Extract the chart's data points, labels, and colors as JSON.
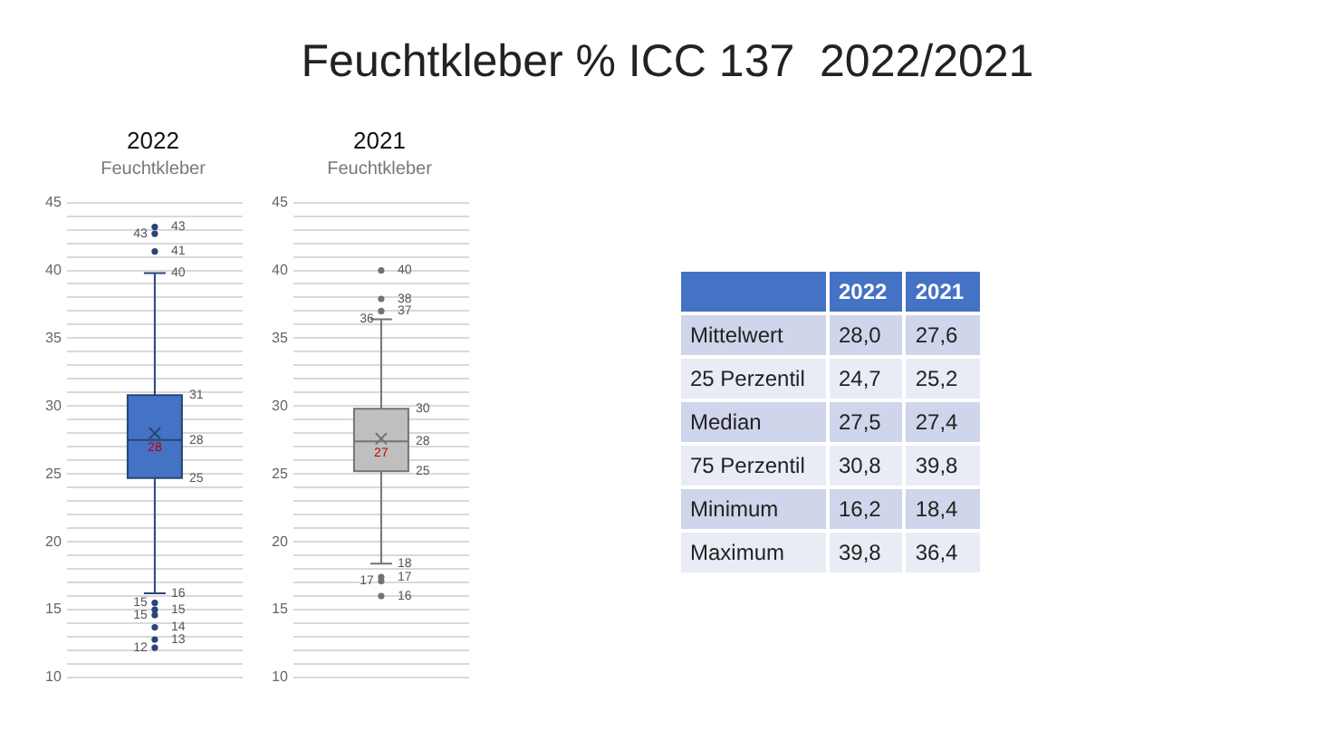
{
  "chart_data": [
    {
      "type": "other",
      "title": "Feuchtkleber % ICC 137  2022/2021",
      "annotations": [
        "2022",
        "2021",
        "Mittelwert",
        "28,0",
        "27,6",
        "25 Perzentil",
        "24,7",
        "25,2",
        "Median",
        "27,5",
        "27,4",
        "75 Perzentil",
        "30,8",
        "39,8",
        "Minimum",
        "16,2",
        "18,4",
        "Maximum",
        "39,8",
        "36,4"
      ]
    },
    {
      "type": "box",
      "title": "2022",
      "subtitle": "Feuchtkleber",
      "categories": [
        null
      ],
      "color": "#4472c4",
      "ylim": [
        10,
        45
      ],
      "grid": true,
      "yticks": [
        10,
        {
          "value": 11,
          "label": null
        },
        {
          "value": 12,
          "label": null
        },
        {
          "value": 13,
          "label": null
        },
        {
          "value": 14,
          "label": null
        },
        15,
        {
          "value": 16,
          "label": null
        },
        {
          "value": 17,
          "label": null
        },
        {
          "value": 18,
          "label": null
        },
        {
          "value": 19,
          "label": null
        },
        20,
        {
          "value": 21,
          "label": null
        },
        {
          "value": 22,
          "label": null
        },
        {
          "value": 23,
          "label": null
        },
        {
          "value": 24,
          "label": null
        },
        25,
        {
          "value": 26,
          "label": null
        },
        {
          "value": 27,
          "label": null
        },
        {
          "value": 28,
          "label": null
        },
        {
          "value": 29,
          "label": null
        },
        30,
        {
          "value": 31,
          "label": null
        },
        {
          "value": 32,
          "label": null
        },
        {
          "value": 33,
          "label": null
        },
        {
          "value": 34,
          "label": null
        },
        35,
        {
          "value": 36,
          "label": null
        },
        {
          "value": 37,
          "label": null
        },
        {
          "value": 38,
          "label": null
        },
        {
          "value": 39,
          "label": null
        },
        40,
        {
          "value": 41,
          "label": null
        },
        {
          "value": 42,
          "label": null
        },
        {
          "value": 43,
          "label": null
        },
        {
          "value": 44,
          "label": null
        },
        45
      ],
      "boxes": [
        {
          "low": 16.2,
          "q1": 24.7,
          "median": 27.5,
          "q3": 30.8,
          "high": 39.8,
          "mean": 28.0,
          "outliers": [
            43.2,
            42.7,
            41.4,
            15.5,
            15.0,
            14.6,
            13.7,
            12.8,
            12.2
          ]
        }
      ],
      "annotations": [
        "43",
        "43",
        "41",
        "40",
        "31",
        "28",
        "28",
        "25",
        "16",
        "15",
        "15",
        "15",
        "14",
        "13",
        "12"
      ]
    },
    {
      "type": "box",
      "title": "2021",
      "subtitle": "Feuchtkleber",
      "categories": [
        null
      ],
      "color": "#bfbfbf",
      "ylim": [
        10,
        45
      ],
      "grid": true,
      "yticks": [
        10,
        {
          "value": 11,
          "label": null
        },
        {
          "value": 12,
          "label": null
        },
        {
          "value": 13,
          "label": null
        },
        {
          "value": 14,
          "label": null
        },
        15,
        {
          "value": 16,
          "label": null
        },
        {
          "value": 17,
          "label": null
        },
        {
          "value": 18,
          "label": null
        },
        {
          "value": 19,
          "label": null
        },
        20,
        {
          "value": 21,
          "label": null
        },
        {
          "value": 22,
          "label": null
        },
        {
          "value": 23,
          "label": null
        },
        {
          "value": 24,
          "label": null
        },
        25,
        {
          "value": 26,
          "label": null
        },
        {
          "value": 27,
          "label": null
        },
        {
          "value": 28,
          "label": null
        },
        {
          "value": 29,
          "label": null
        },
        30,
        {
          "value": 31,
          "label": null
        },
        {
          "value": 32,
          "label": null
        },
        {
          "value": 33,
          "label": null
        },
        {
          "value": 34,
          "label": null
        },
        35,
        {
          "value": 36,
          "label": null
        },
        {
          "value": 37,
          "label": null
        },
        {
          "value": 38,
          "label": null
        },
        {
          "value": 39,
          "label": null
        },
        40,
        {
          "value": 41,
          "label": null
        },
        {
          "value": 42,
          "label": null
        },
        {
          "value": 43,
          "label": null
        },
        {
          "value": 44,
          "label": null
        },
        45
      ],
      "boxes": [
        {
          "low": 18.4,
          "q1": 25.2,
          "median": 27.4,
          "q3": 29.8,
          "high": 36.4,
          "mean": 27.6,
          "outliers": [
            40.0,
            37.9,
            37.0,
            17.4,
            17.1,
            16.0
          ]
        }
      ],
      "annotations": [
        "40",
        "38",
        "37",
        "36",
        "30",
        "28",
        "27",
        "25",
        "18",
        "17",
        "17",
        "16"
      ]
    }
  ]
}
